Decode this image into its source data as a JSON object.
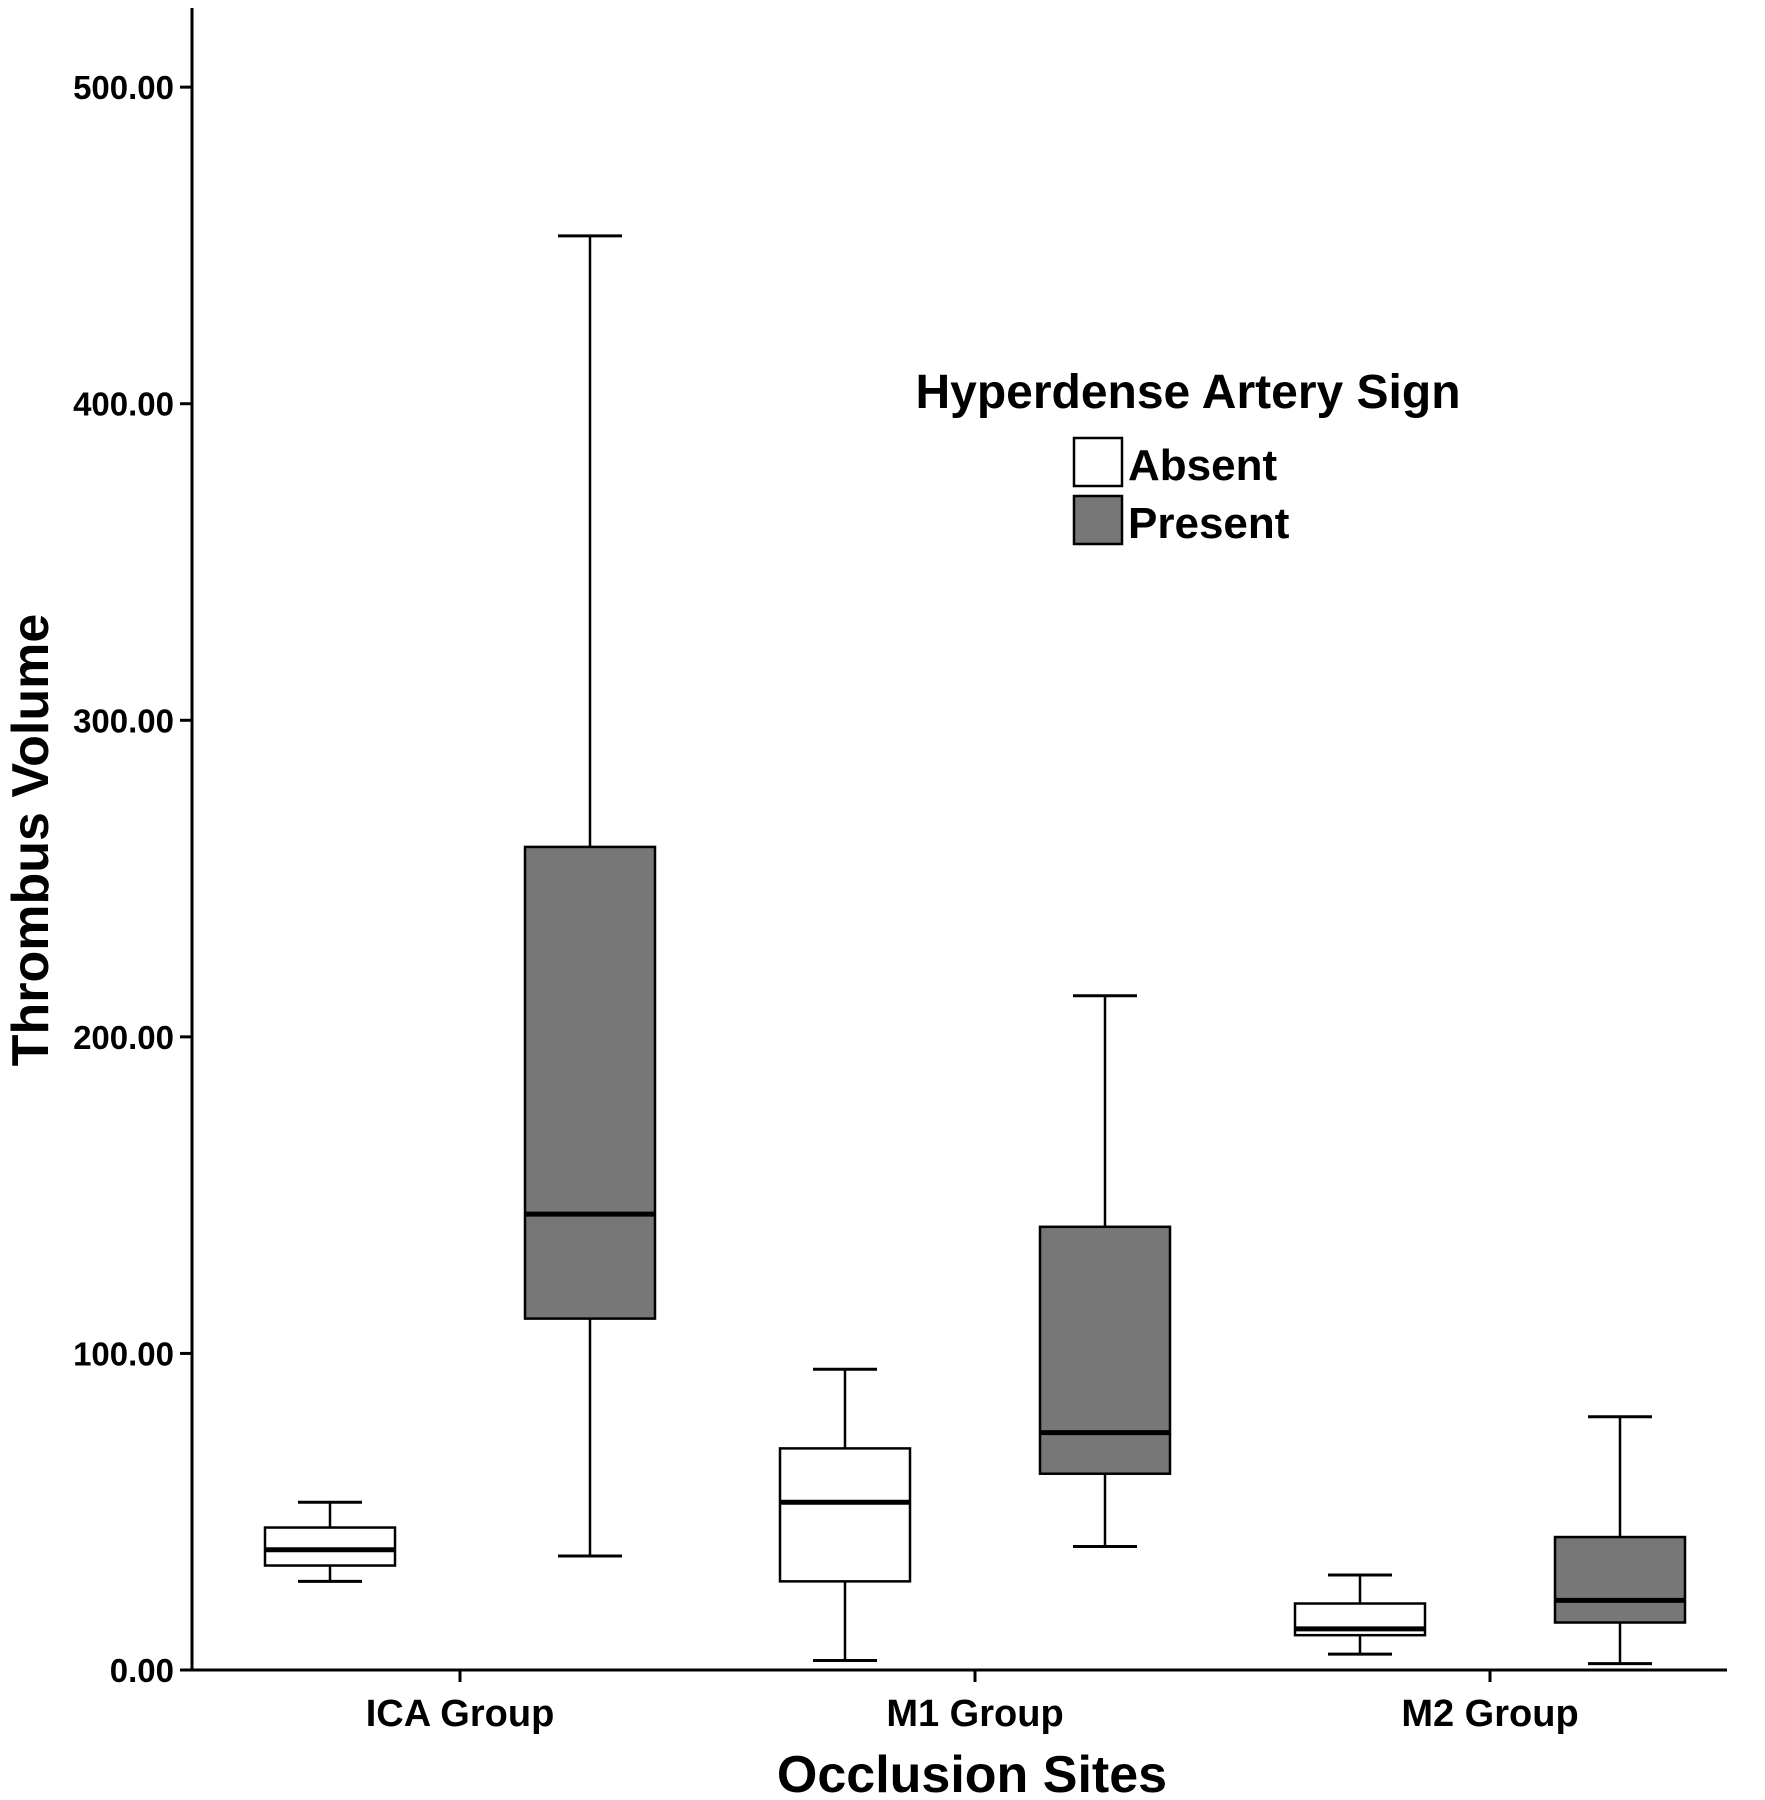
{
  "chart_data": {
    "type": "boxplot",
    "xlabel": "Occlusion Sites",
    "ylabel": "Thrombus Volume",
    "ylim": [
      0,
      525
    ],
    "y_ticks": [
      "0.00",
      "100.00",
      "200.00",
      "300.00",
      "400.00",
      "500.00"
    ],
    "y_tick_values": [
      0,
      100,
      200,
      300,
      400,
      500
    ],
    "categories": [
      "ICA Group",
      "M1 Group",
      "M2 Group"
    ],
    "legend": {
      "title": "Hyperdense Artery Sign",
      "position": "top-right"
    },
    "series": [
      {
        "name": "Absent",
        "color": "#ffffff",
        "boxes": [
          {
            "min": 28,
            "q1": 33,
            "median": 38,
            "q3": 45,
            "max": 53
          },
          {
            "min": 3,
            "q1": 28,
            "median": 53,
            "q3": 70,
            "max": 95
          },
          {
            "min": 5,
            "q1": 11,
            "median": 13,
            "q3": 21,
            "max": 30
          }
        ]
      },
      {
        "name": "Present",
        "color": "#777777",
        "boxes": [
          {
            "min": 36,
            "q1": 111,
            "median": 144,
            "q3": 260,
            "max": 453
          },
          {
            "min": 39,
            "q1": 62,
            "median": 75,
            "q3": 140,
            "max": 213
          },
          {
            "min": 2,
            "q1": 15,
            "median": 22,
            "q3": 42,
            "max": 80
          }
        ]
      }
    ]
  }
}
